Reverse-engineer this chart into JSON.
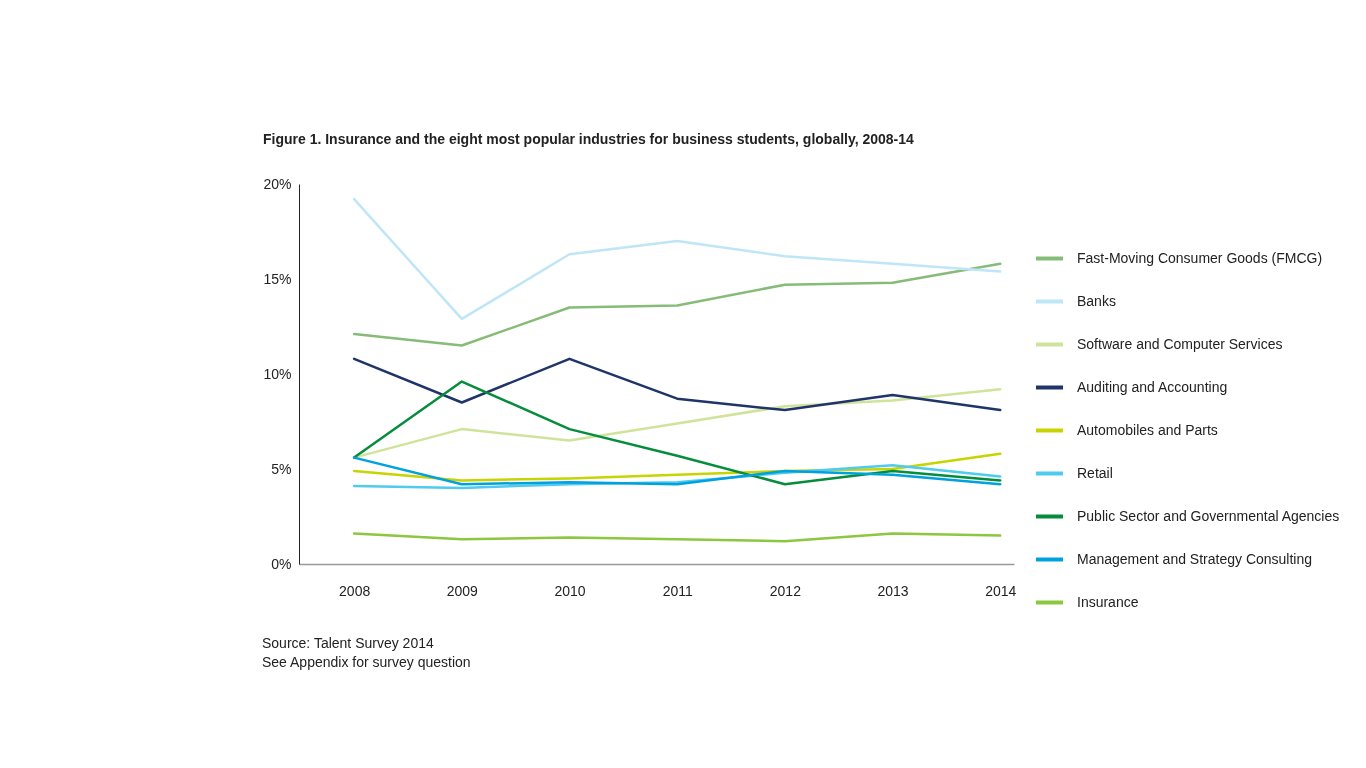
{
  "chart_data": {
    "type": "line",
    "title": "Figure 1. Insurance and the eight most popular industries for business students, globally, 2008-14",
    "categories": [
      "2008",
      "2009",
      "2010",
      "2011",
      "2012",
      "2013",
      "2014"
    ],
    "series": [
      {
        "name": "Fast-Moving Consumer Goods (FMCG)",
        "color": "#86bc78",
        "values": [
          12.1,
          11.5,
          13.5,
          13.6,
          14.7,
          14.8,
          15.8
        ]
      },
      {
        "name": "Banks",
        "color": "#bfe6f7",
        "values": [
          19.2,
          12.9,
          16.3,
          17.0,
          16.2,
          15.8,
          15.4
        ]
      },
      {
        "name": "Software and Computer Services",
        "color": "#d0e39a",
        "values": [
          5.6,
          7.1,
          6.5,
          7.4,
          8.3,
          8.6,
          9.2
        ]
      },
      {
        "name": "Auditing and Accounting",
        "color": "#1f3468",
        "values": [
          10.8,
          8.5,
          10.8,
          8.7,
          8.1,
          8.9,
          8.1
        ]
      },
      {
        "name": "Automobiles and Parts",
        "color": "#c8d400",
        "values": [
          4.9,
          4.4,
          4.5,
          4.7,
          4.9,
          5.0,
          5.8
        ]
      },
      {
        "name": "Retail",
        "color": "#4ecbee",
        "values": [
          4.1,
          4.0,
          4.2,
          4.3,
          4.8,
          5.2,
          4.6
        ]
      },
      {
        "name": "Public Sector and Governmental Agencies",
        "color": "#068d3c",
        "values": [
          5.6,
          9.6,
          7.1,
          5.7,
          4.2,
          4.9,
          4.4
        ]
      },
      {
        "name": "Management and Strategy Consulting",
        "color": "#00a1de",
        "values": [
          5.6,
          4.2,
          4.3,
          4.2,
          4.9,
          4.7,
          4.2
        ]
      },
      {
        "name": "Insurance",
        "color": "#8dc63f",
        "values": [
          1.6,
          1.3,
          1.4,
          1.3,
          1.2,
          1.6,
          1.5
        ]
      }
    ],
    "ylim": [
      0,
      20
    ],
    "yticks": [
      {
        "value": 0,
        "label": "0%"
      },
      {
        "value": 5,
        "label": "5%"
      },
      {
        "value": 10,
        "label": "10%"
      },
      {
        "value": 15,
        "label": "15%"
      },
      {
        "value": 20,
        "label": "20%"
      }
    ],
    "grid": false,
    "legend": "right",
    "annotations": [
      "Source: Talent Survey 2014",
      "See Appendix for survey question"
    ]
  }
}
